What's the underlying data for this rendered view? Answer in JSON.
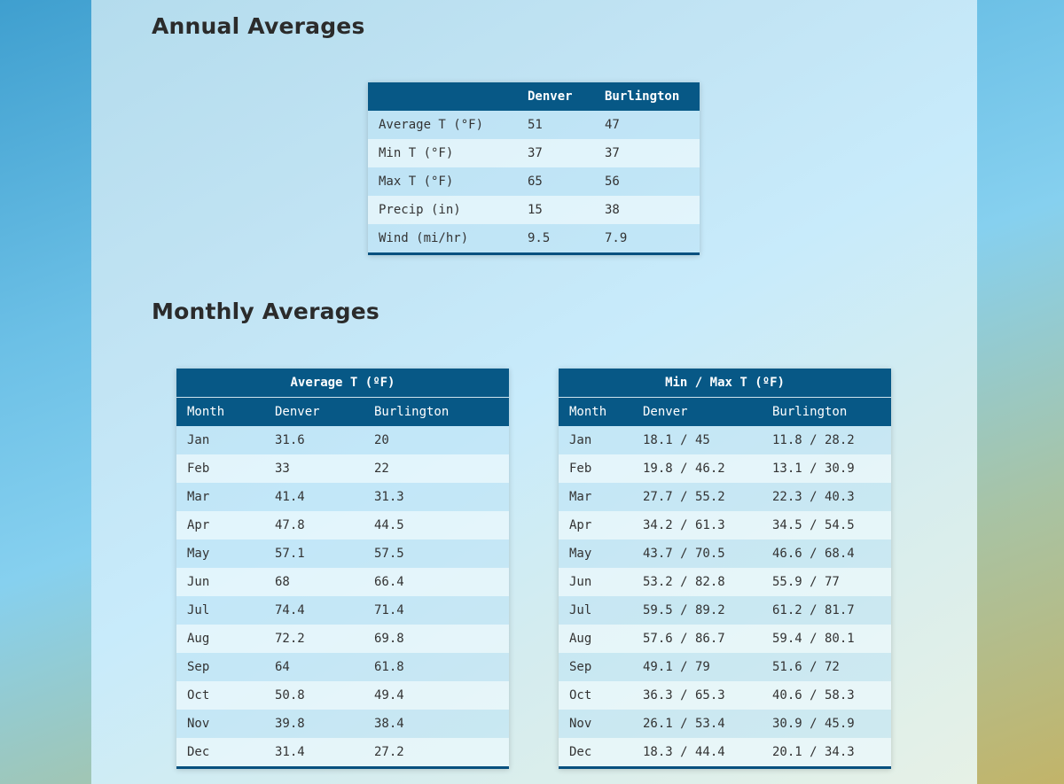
{
  "annual": {
    "heading": "Annual Averages",
    "columns": [
      "",
      "Denver",
      "Burlington"
    ],
    "rows": [
      [
        "Average T (°F)",
        "51",
        "47"
      ],
      [
        "Min T (°F)",
        "37",
        "37"
      ],
      [
        "Max T (°F)",
        "65",
        "56"
      ],
      [
        "Precip (in)",
        "15",
        "38"
      ],
      [
        "Wind (mi/hr)",
        "9.5",
        "7.9"
      ]
    ]
  },
  "monthly": {
    "heading": "Monthly Averages",
    "avg_table": {
      "caption": "Average T (ºF)",
      "columns": [
        "Month",
        "Denver",
        "Burlington"
      ],
      "rows": [
        [
          "Jan",
          "31.6",
          "20"
        ],
        [
          "Feb",
          "33",
          "22"
        ],
        [
          "Mar",
          "41.4",
          "31.3"
        ],
        [
          "Apr",
          "47.8",
          "44.5"
        ],
        [
          "May",
          "57.1",
          "57.5"
        ],
        [
          "Jun",
          "68",
          "66.4"
        ],
        [
          "Jul",
          "74.4",
          "71.4"
        ],
        [
          "Aug",
          "72.2",
          "69.8"
        ],
        [
          "Sep",
          "64",
          "61.8"
        ],
        [
          "Oct",
          "50.8",
          "49.4"
        ],
        [
          "Nov",
          "39.8",
          "38.4"
        ],
        [
          "Dec",
          "31.4",
          "27.2"
        ]
      ]
    },
    "minmax_table": {
      "caption": "Min / Max T (ºF)",
      "columns": [
        "Month",
        "Denver",
        "Burlington"
      ],
      "rows": [
        [
          "Jan",
          "18.1 / 45",
          "11.8 / 28.2"
        ],
        [
          "Feb",
          "19.8 / 46.2",
          "13.1 / 30.9"
        ],
        [
          "Mar",
          "27.7 / 55.2",
          "22.3 / 40.3"
        ],
        [
          "Apr",
          "34.2 / 61.3",
          "34.5 / 54.5"
        ],
        [
          "May",
          "43.7 / 70.5",
          "46.6 / 68.4"
        ],
        [
          "Jun",
          "53.2 / 82.8",
          "55.9 / 77"
        ],
        [
          "Jul",
          "59.5 / 89.2",
          "61.2 / 81.7"
        ],
        [
          "Aug",
          "57.6 / 86.7",
          "59.4 / 80.1"
        ],
        [
          "Sep",
          "49.1 / 79",
          "51.6 / 72"
        ],
        [
          "Oct",
          "36.3 / 65.3",
          "40.6 / 58.3"
        ],
        [
          "Nov",
          "26.1 / 53.4",
          "30.9 / 45.9"
        ],
        [
          "Dec",
          "18.3 / 44.4",
          "20.1 / 34.3"
        ]
      ]
    }
  }
}
